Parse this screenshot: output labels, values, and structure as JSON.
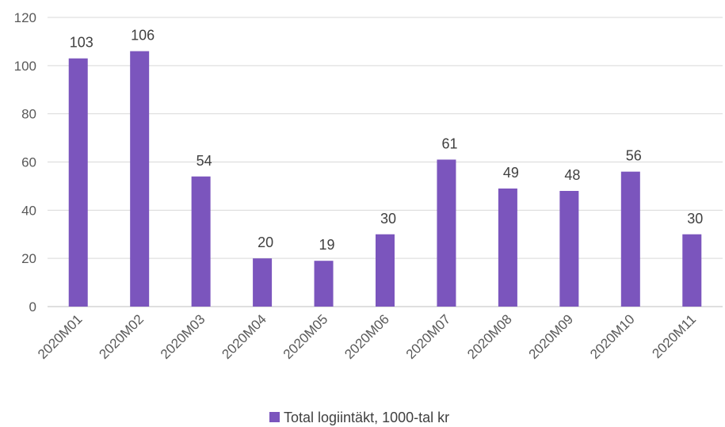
{
  "chart_data": {
    "type": "bar",
    "categories": [
      "2020M01",
      "2020M02",
      "2020M03",
      "2020M04",
      "2020M05",
      "2020M06",
      "2020M07",
      "2020M08",
      "2020M09",
      "2020M10",
      "2020M11"
    ],
    "series": [
      {
        "name": "Total logiintäkt, 1000-tal kr",
        "values": [
          103,
          106,
          54,
          20,
          19,
          30,
          61,
          49,
          48,
          56,
          30
        ],
        "labels": [
          "103",
          "106",
          "54",
          "20",
          "19",
          "30",
          "61",
          "49",
          "48",
          "56",
          "30"
        ],
        "color": "#7b55bd"
      }
    ],
    "yticks": [
      "0",
      "20",
      "40",
      "60",
      "80",
      "100",
      "120"
    ],
    "ylim": [
      0,
      120
    ],
    "grid": true,
    "legend_position": "bottom"
  },
  "colors": {
    "bar": "#7b55bd",
    "grid": "#d9d9d9",
    "axis": "#bfbfbf"
  }
}
